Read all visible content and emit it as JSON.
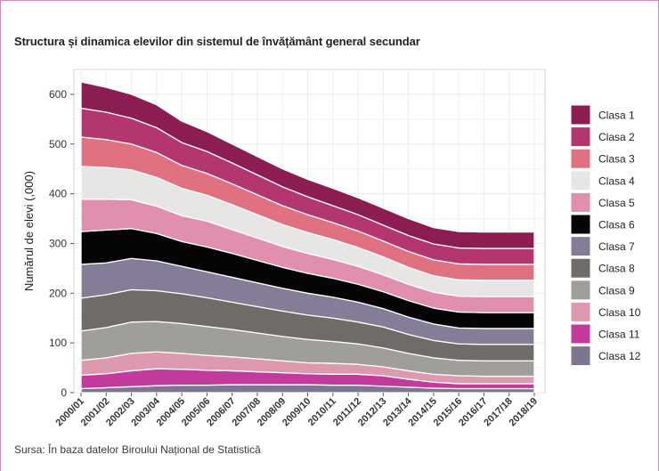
{
  "title": "Structura și dinamica elevilor din sistemul de învățământ general secundar",
  "source": "Sursa: În baza datelor Biroului Național de Statistică",
  "chart_data": {
    "type": "area",
    "stacked": true,
    "title": "Structura și dinamica elevilor din sistemul de învățământ general secundar",
    "xlabel": "",
    "ylabel": "Numărul de elevi (,000)",
    "ylim": [
      0,
      650
    ],
    "yticks": [
      0,
      100,
      200,
      300,
      400,
      500,
      600
    ],
    "grid": true,
    "legend_position": "right",
    "categories": [
      "2000/01",
      "2001/02",
      "2002/03",
      "2003/04",
      "2004/05",
      "2005/06",
      "2006/07",
      "2007/08",
      "2008/09",
      "2009/10",
      "2010/11",
      "2011/12",
      "2012/13",
      "2013/14",
      "2014/15",
      "2015/16",
      "2016/17",
      "2017/18",
      "2018/19"
    ],
    "series": [
      {
        "name": "Clasa 12",
        "color": "#7e7590",
        "values": [
          8,
          10,
          12,
          14,
          15,
          15,
          16,
          16,
          16,
          16,
          15,
          15,
          13,
          11,
          9,
          8,
          8,
          8,
          8
        ]
      },
      {
        "name": "Clasa 11",
        "color": "#c13a9c",
        "values": [
          27,
          28,
          32,
          34,
          32,
          30,
          28,
          26,
          24,
          22,
          22,
          22,
          21,
          16,
          12,
          10,
          10,
          10,
          10
        ]
      },
      {
        "name": "Clasa 10",
        "color": "#dd9aae",
        "values": [
          30,
          32,
          35,
          34,
          32,
          30,
          28,
          26,
          24,
          22,
          22,
          20,
          18,
          17,
          16,
          16,
          15,
          15,
          15
        ]
      },
      {
        "name": "Clasa 9",
        "color": "#a09e9a",
        "values": [
          59,
          61,
          63,
          61,
          60,
          58,
          55,
          52,
          49,
          47,
          44,
          41,
          38,
          35,
          33,
          31,
          31,
          31,
          31
        ]
      },
      {
        "name": "Clasa 8",
        "color": "#6f6b66",
        "values": [
          66,
          66,
          65,
          62,
          60,
          58,
          55,
          53,
          51,
          49,
          47,
          44,
          42,
          38,
          35,
          33,
          33,
          33,
          33
        ]
      },
      {
        "name": "Clasa 7",
        "color": "#857d98",
        "values": [
          68,
          64,
          63,
          60,
          55,
          52,
          50,
          48,
          46,
          44,
          42,
          40,
          37,
          35,
          33,
          32,
          32,
          32,
          32
        ]
      },
      {
        "name": "Clasa 6",
        "color": "#050505",
        "values": [
          66,
          66,
          60,
          55,
          50,
          50,
          48,
          45,
          42,
          40,
          38,
          36,
          34,
          33,
          32,
          32,
          32,
          32,
          32
        ]
      },
      {
        "name": "Clasa 5",
        "color": "#e08fae",
        "values": [
          65,
          62,
          58,
          55,
          52,
          52,
          48,
          45,
          42,
          40,
          38,
          36,
          34,
          33,
          32,
          32,
          32,
          32,
          32
        ]
      },
      {
        "name": "Clasa 4",
        "color": "#e8e6e4",
        "values": [
          66,
          64,
          60,
          58,
          55,
          52,
          50,
          47,
          44,
          42,
          40,
          38,
          36,
          34,
          33,
          33,
          33,
          33,
          33
        ]
      },
      {
        "name": "Clasa 3",
        "color": "#df7180",
        "values": [
          59,
          56,
          52,
          50,
          46,
          44,
          42,
          40,
          38,
          36,
          34,
          33,
          32,
          32,
          32,
          32,
          32,
          32,
          32
        ]
      },
      {
        "name": "Clasa 2",
        "color": "#b3366f",
        "values": [
          58,
          55,
          52,
          50,
          46,
          44,
          42,
          40,
          38,
          36,
          34,
          33,
          32,
          32,
          32,
          32,
          32,
          32,
          32
        ]
      },
      {
        "name": "Clasa 1",
        "color": "#8c1d52",
        "values": [
          53,
          50,
          48,
          46,
          43,
          40,
          38,
          37,
          36,
          35,
          35,
          34,
          34,
          34,
          33,
          33,
          33,
          33,
          33
        ]
      }
    ]
  }
}
